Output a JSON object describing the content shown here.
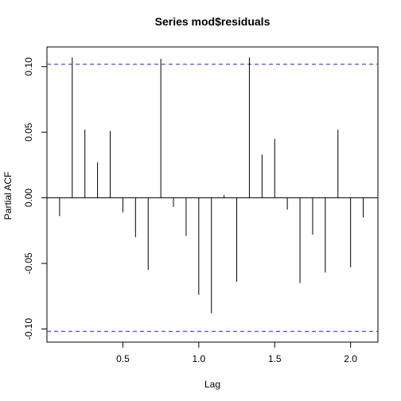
{
  "chart_data": {
    "type": "bar",
    "title": "Series  mod$residuals",
    "xlabel": "Lag",
    "ylabel": "Partial ACF",
    "xlim": [
      0.0,
      2.18
    ],
    "ylim": [
      -0.11,
      0.115
    ],
    "x_ticks": [
      {
        "value": 0.5,
        "label": "0.5"
      },
      {
        "value": 1.0,
        "label": "1.0"
      },
      {
        "value": 1.5,
        "label": "1.5"
      },
      {
        "value": 2.0,
        "label": "2.0"
      }
    ],
    "y_ticks": [
      {
        "value": -0.1,
        "label": "-0.10"
      },
      {
        "value": -0.05,
        "label": "-0.05"
      },
      {
        "value": 0.0,
        "label": "0.00"
      },
      {
        "value": 0.05,
        "label": "0.05"
      },
      {
        "value": 0.1,
        "label": "0.10"
      }
    ],
    "confidence_bound": 0.1018,
    "confidence_color": "#4d4dd6",
    "lags": [
      0.0833,
      0.1667,
      0.25,
      0.3333,
      0.4167,
      0.5,
      0.5833,
      0.6667,
      0.75,
      0.8333,
      0.9167,
      1.0,
      1.0833,
      1.1667,
      1.25,
      1.3333,
      1.4167,
      1.5,
      1.5833,
      1.6667,
      1.75,
      1.8333,
      1.9167,
      2.0,
      2.0833
    ],
    "values": [
      -0.014,
      0.107,
      0.052,
      0.027,
      0.051,
      -0.011,
      -0.03,
      -0.055,
      0.106,
      -0.007,
      -0.029,
      -0.074,
      -0.088,
      0.002,
      -0.064,
      0.107,
      0.033,
      0.045,
      -0.009,
      -0.065,
      -0.028,
      -0.057,
      0.052,
      -0.053,
      -0.015
    ]
  }
}
